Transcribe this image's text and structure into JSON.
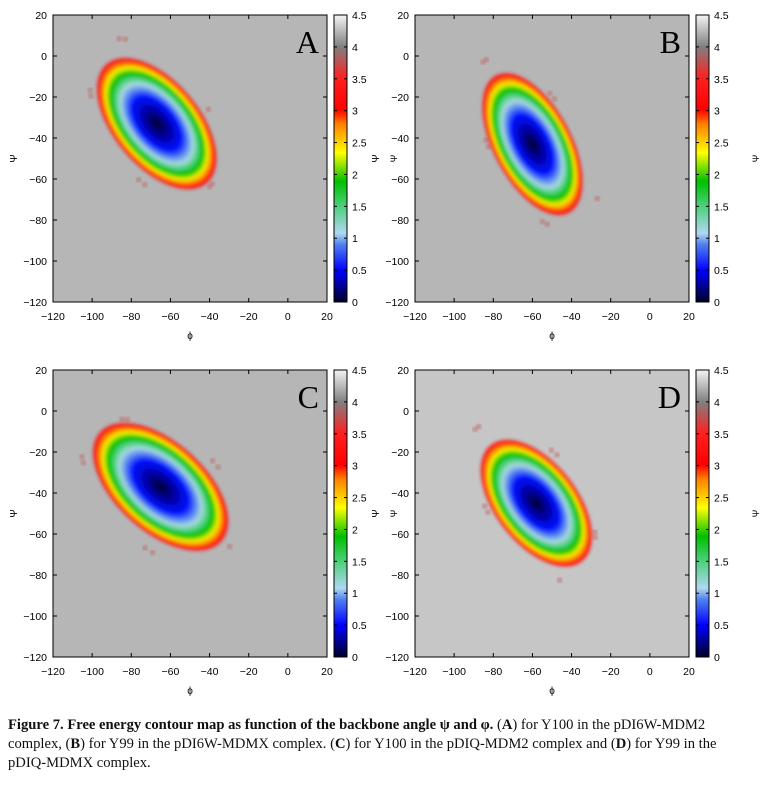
{
  "chart_data": [
    {
      "type": "heatmap",
      "panel_label": "A",
      "xlabel": "ϕ",
      "ylabel": "Ψ",
      "colorbar_label": "Ψ",
      "xlim": [
        -120,
        20
      ],
      "ylim": [
        -120,
        20
      ],
      "zlim": [
        0,
        4.5
      ],
      "xticks": [
        "-120",
        "-100",
        "-80",
        "-60",
        "-40",
        "-20",
        "0",
        "20"
      ],
      "yticks": [
        "20",
        "0",
        "-20",
        "-40",
        "-60",
        "-80",
        "-100",
        "-120"
      ],
      "cticks": [
        "4.5",
        "4",
        "3.5",
        "3",
        "2.5",
        "2",
        "1.5",
        "1",
        "0.5",
        "0"
      ],
      "minimum": {
        "phi": -67,
        "psi": -33
      },
      "background": "#b6b6b6"
    },
    {
      "type": "heatmap",
      "panel_label": "B",
      "xlabel": "ϕ",
      "ylabel": "Ψ",
      "colorbar_label": "Ψ",
      "xlim": [
        -120,
        20
      ],
      "ylim": [
        -120,
        20
      ],
      "zlim": [
        0,
        4.5
      ],
      "xticks": [
        "-120",
        "-100",
        "-80",
        "-60",
        "-40",
        "-20",
        "0",
        "20"
      ],
      "yticks": [
        "20",
        "0",
        "-20",
        "-40",
        "-60",
        "-80",
        "-100",
        "-120"
      ],
      "cticks": [
        "4.5",
        "4",
        "3.5",
        "3",
        "2.5",
        "2",
        "1.5",
        "1",
        "0.5",
        "0"
      ],
      "minimum": {
        "phi": -60,
        "psi": -43
      },
      "background": "#b6b6b6"
    },
    {
      "type": "heatmap",
      "panel_label": "C",
      "xlabel": "ϕ",
      "ylabel": "Ψ",
      "colorbar_label": "Ψ",
      "xlim": [
        -120,
        20
      ],
      "ylim": [
        -120,
        20
      ],
      "zlim": [
        0,
        4.5
      ],
      "xticks": [
        "-120",
        "-100",
        "-80",
        "-60",
        "-40",
        "-20",
        "0",
        "20"
      ],
      "yticks": [
        "20",
        "0",
        "-20",
        "-40",
        "-60",
        "-80",
        "-100",
        "-120"
      ],
      "cticks": [
        "4.5",
        "4",
        "3.5",
        "3",
        "2.5",
        "2",
        "1.5",
        "1",
        "0.5",
        "0"
      ],
      "minimum": {
        "phi": -65,
        "psi": -37
      },
      "background": "#b6b6b6"
    },
    {
      "type": "heatmap",
      "panel_label": "D",
      "xlabel": "ϕ",
      "ylabel": "Ψ",
      "colorbar_label": "Ψ",
      "xlim": [
        -120,
        20
      ],
      "ylim": [
        -120,
        20
      ],
      "zlim": [
        0,
        4.5
      ],
      "xticks": [
        "-120",
        "-100",
        "-80",
        "-60",
        "-40",
        "-20",
        "0",
        "20"
      ],
      "yticks": [
        "20",
        "0",
        "-20",
        "-40",
        "-60",
        "-80",
        "-100",
        "-120"
      ],
      "cticks": [
        "4.5",
        "4",
        "3.5",
        "3",
        "2.5",
        "2",
        "1.5",
        "1",
        "0.5",
        "0"
      ],
      "minimum": {
        "phi": -58,
        "psi": -45
      },
      "background": "#c6c6c6"
    }
  ],
  "caption": [
    {
      "text": "Figure 7.  Free energy contour map as function of the backbone angle ψ and φ. ",
      "bold": true
    },
    {
      "text": "(",
      "bold": false
    },
    {
      "text": "A",
      "bold": true
    },
    {
      "text": ") for Y100 in the pDI6W-MDM2 complex, (",
      "bold": false
    },
    {
      "text": "B",
      "bold": true
    },
    {
      "text": ") for Y99 in the pDI6W-MDMX complex. (",
      "bold": false
    },
    {
      "text": "C",
      "bold": true
    },
    {
      "text": ") for Y100 in the pDIQ-MDM2 complex and (",
      "bold": false
    },
    {
      "text": "D",
      "bold": true
    },
    {
      "text": ") for Y99 in the pDIQ-MDMX complex.",
      "bold": false
    }
  ]
}
